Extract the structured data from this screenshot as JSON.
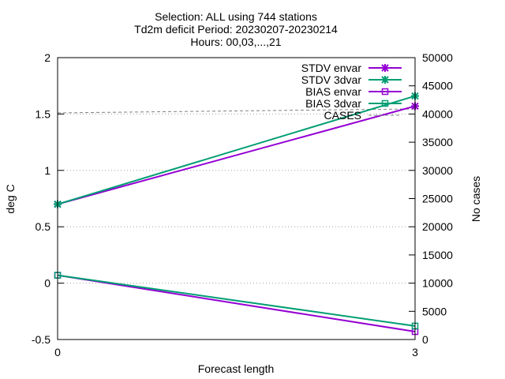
{
  "chart_data": {
    "type": "line",
    "title_lines": [
      "Selection: ALL using   744 stations",
      "Td2m deficit   Period: 20230207-20230214",
      "Hours: 00,03,...,21"
    ],
    "xlabel": "Forecast length",
    "ylabel": "deg C",
    "y2label": "No cases",
    "x": [
      0,
      3
    ],
    "x_ticks": [
      0,
      3
    ],
    "xlim": [
      0,
      3
    ],
    "ylim": [
      -0.5,
      2
    ],
    "y_ticks": [
      -0.5,
      0,
      0.5,
      1,
      1.5,
      2
    ],
    "y_tick_labels": [
      "-0.5",
      "0",
      "0.5",
      "1",
      "1.5",
      "2"
    ],
    "y2lim": [
      0,
      50000
    ],
    "y2_ticks": [
      0,
      5000,
      10000,
      15000,
      20000,
      25000,
      30000,
      35000,
      40000,
      45000,
      50000
    ],
    "grid": "horizontal dotted",
    "legend_position": "top-right",
    "series": [
      {
        "name": "STDV envar",
        "axis": "y",
        "values": [
          0.7,
          1.57
        ],
        "color": "#9400d3",
        "marker": "star"
      },
      {
        "name": "STDV 3dvar",
        "axis": "y",
        "values": [
          0.7,
          1.66
        ],
        "color": "#009e73",
        "marker": "star"
      },
      {
        "name": "BIAS envar",
        "axis": "y",
        "values": [
          0.07,
          -0.43
        ],
        "color": "#9400d3",
        "marker": "square"
      },
      {
        "name": "BIAS 3dvar",
        "axis": "y",
        "values": [
          0.07,
          -0.38
        ],
        "color": "#009e73",
        "marker": "square"
      },
      {
        "name": "CASES",
        "axis": "y2",
        "values": [
          40200,
          40900
        ],
        "color": "#808080",
        "marker": "none",
        "dash": true
      }
    ]
  }
}
